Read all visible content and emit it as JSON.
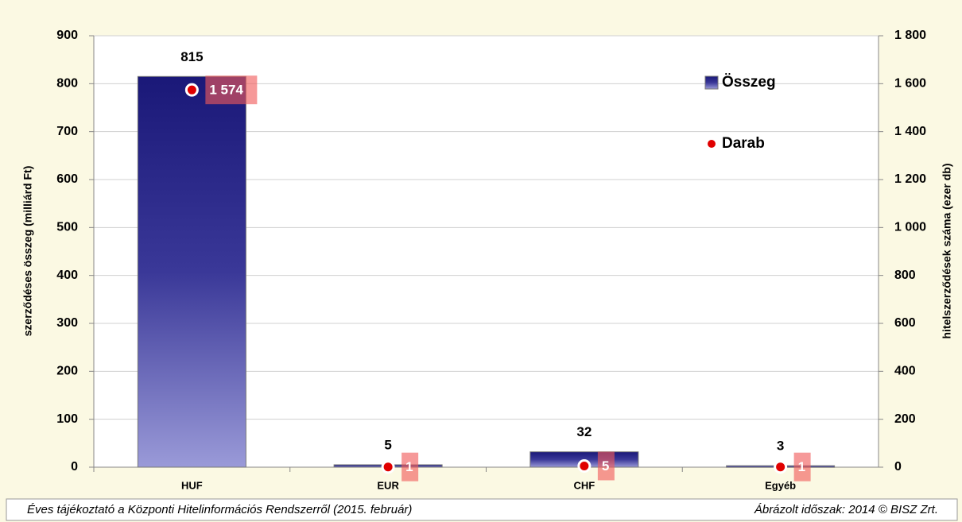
{
  "chart_data": {
    "type": "bar",
    "ylabel": "szerződéses összeg (milliárd Ft)",
    "y2label": "hitelszerződések száma (ezer db)",
    "categories": [
      "HUF",
      "EUR",
      "CHF",
      "Egyéb"
    ],
    "series": [
      {
        "name": "Összeg",
        "type": "bar",
        "color": "#1c1a7e",
        "values": [
          815,
          5,
          32,
          3
        ]
      },
      {
        "name": "Darab",
        "type": "scatter",
        "axis": "y2",
        "color": "#e00000",
        "values": [
          1574,
          1,
          5,
          1
        ],
        "value_labels": [
          "1 574",
          "1",
          "5",
          "1"
        ]
      }
    ],
    "ylim": [
      0,
      900
    ],
    "yticks": [
      0,
      100,
      200,
      300,
      400,
      500,
      600,
      700,
      800,
      900
    ],
    "y2lim": [
      0,
      1800
    ],
    "y2ticks": [
      0,
      200,
      400,
      600,
      800,
      {
        "value": 1000,
        "label": "1 000"
      },
      {
        "value": 1200,
        "label": "1 200"
      },
      {
        "value": 1400,
        "label": "1 400"
      },
      {
        "value": 1600,
        "label": "1 600"
      },
      {
        "value": 1800,
        "label": "1 800"
      }
    ],
    "grid": true,
    "legend": "upper right",
    "footer_left": "Éves tájékoztató a Központi Hitelinformációs Rendszerről (2015. február)",
    "footer_right": "Ábrázolt időszak: 2014 © BISZ Zrt."
  }
}
